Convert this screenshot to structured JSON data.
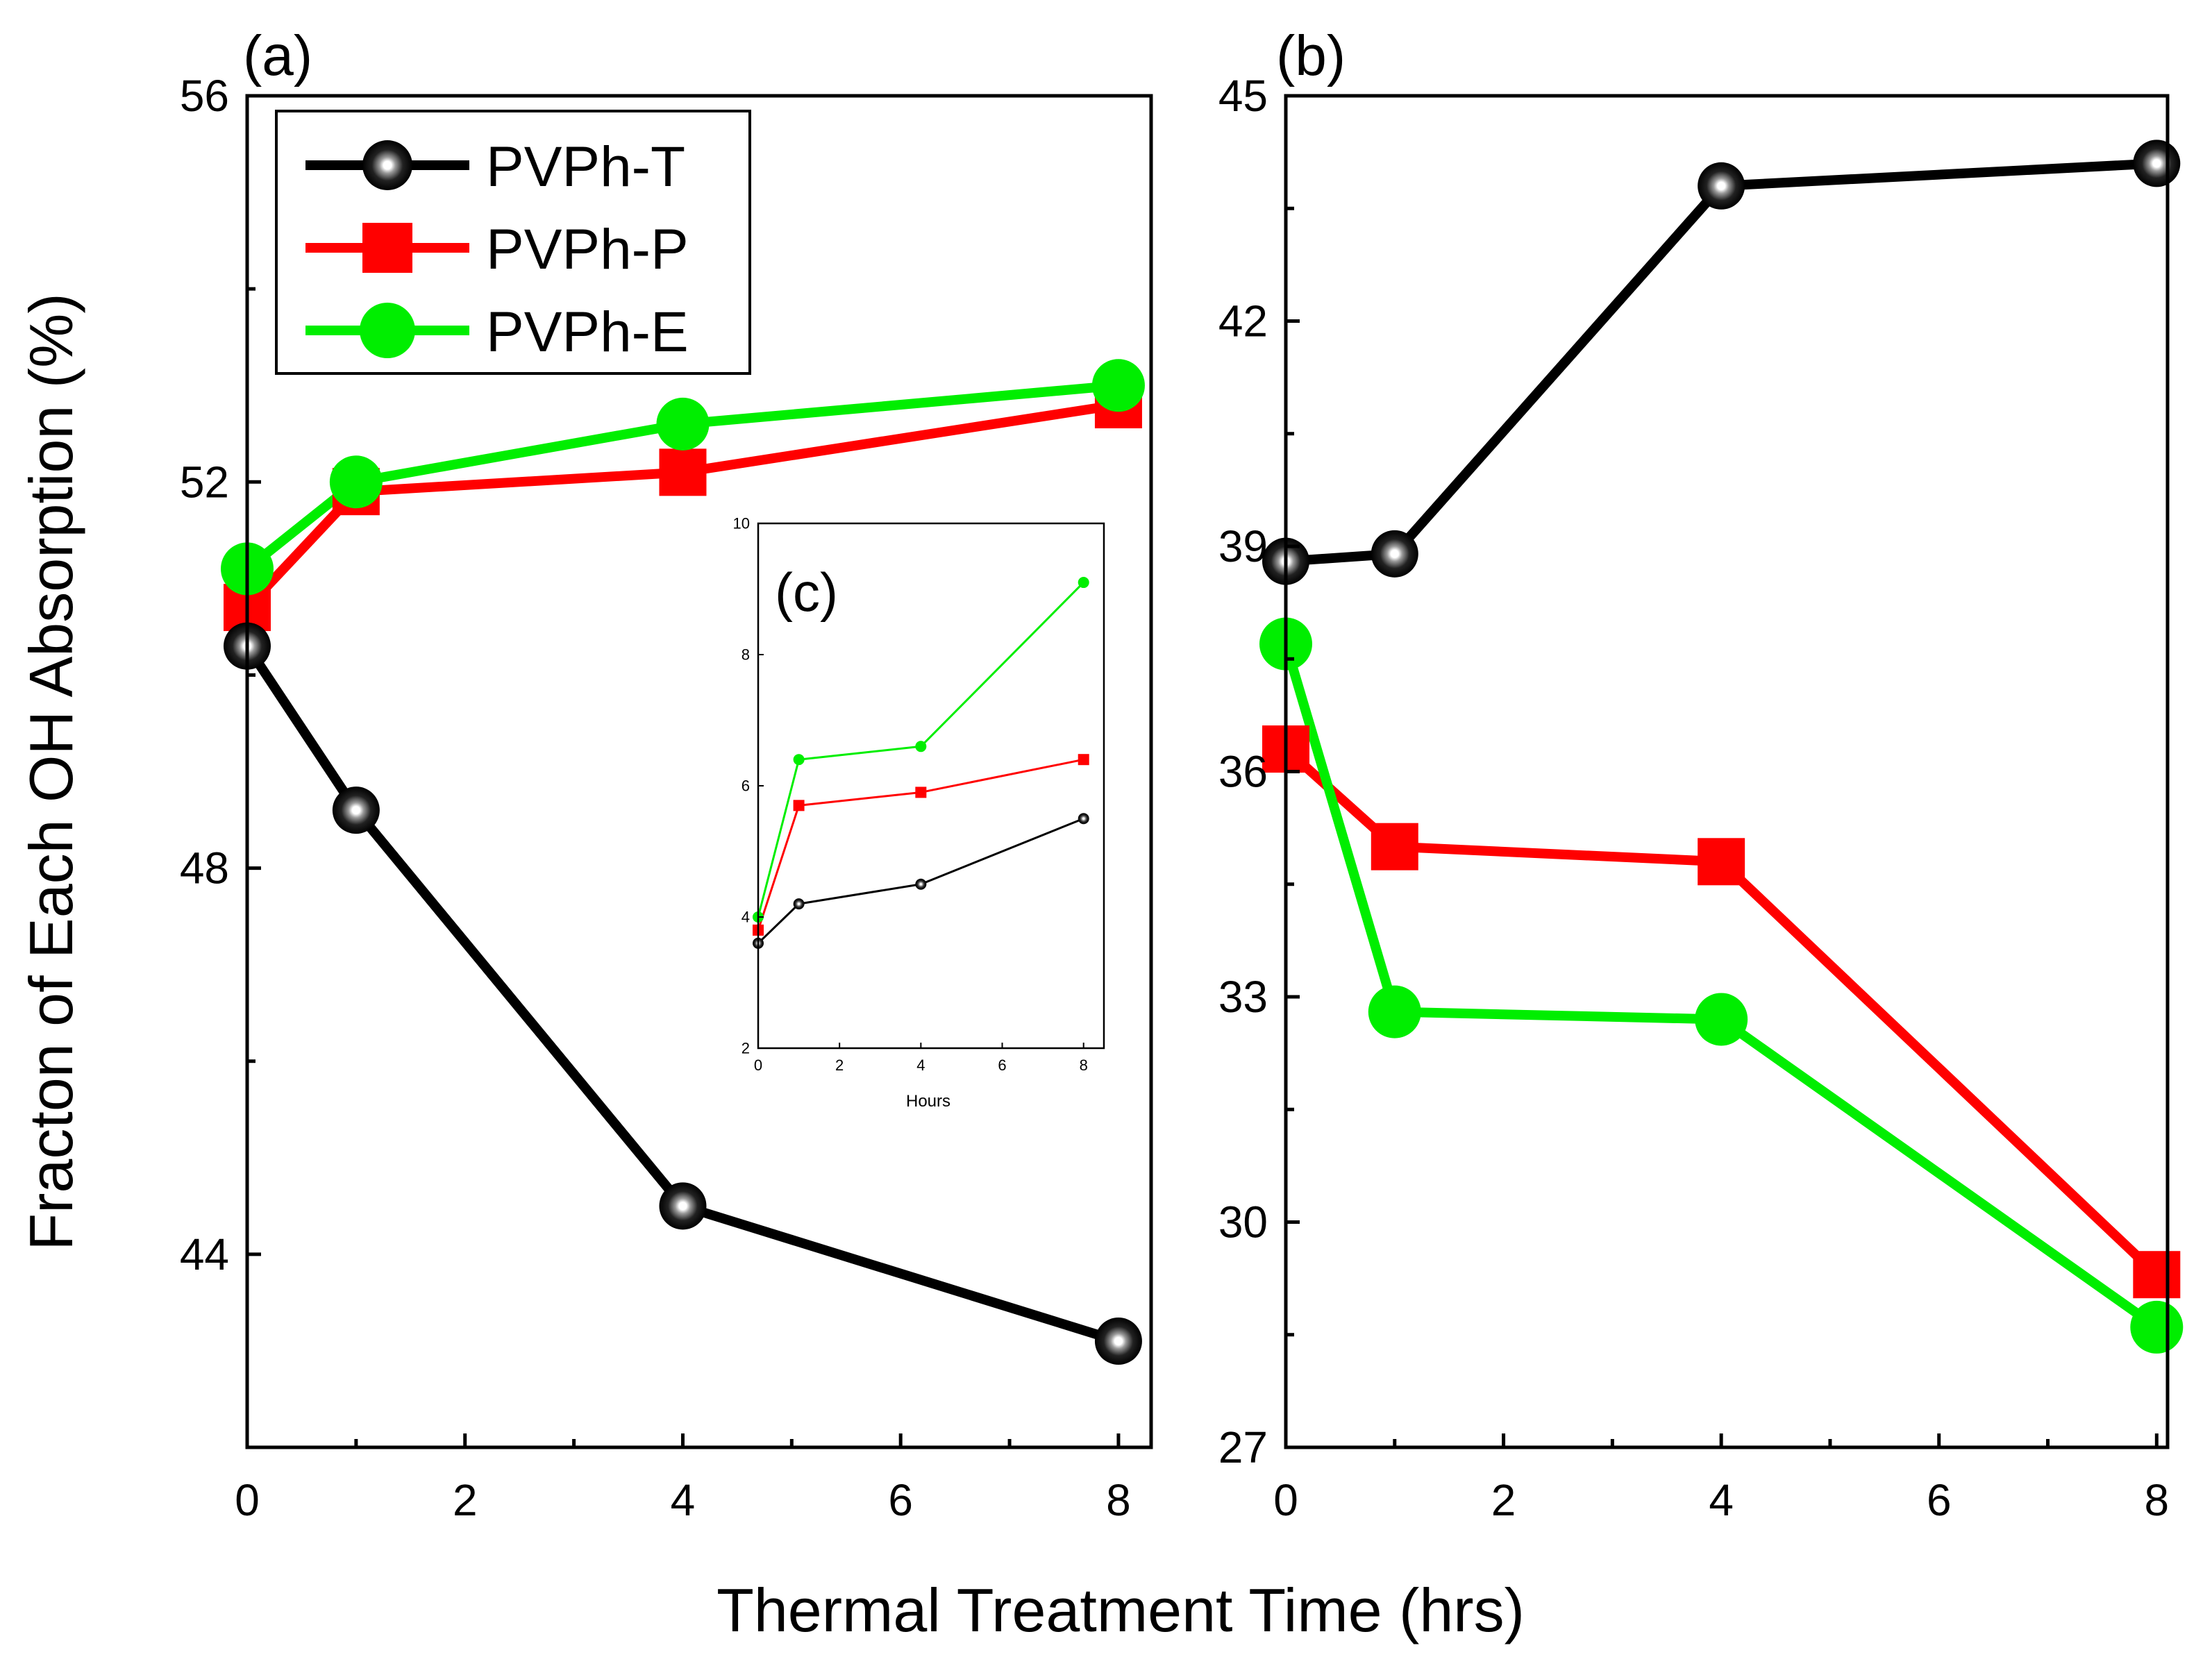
{
  "figure": {
    "xlabel": "Thermal Treatment Time (hrs)",
    "ylabel": "Fracton of Each OH Absorption (%)"
  },
  "chart_data": [
    {
      "panel": "(a)",
      "type": "line",
      "xlim": [
        0,
        8.3
      ],
      "ylim": [
        42,
        56
      ],
      "xticks": [
        "0",
        "2",
        "4",
        "6",
        "8"
      ],
      "yticks": [
        "44",
        "48",
        "52",
        "56"
      ],
      "legend": {
        "placement": "top-left",
        "entries": [
          "PVPh-T",
          "PVPh-P",
          "PVPh-E"
        ]
      },
      "series": [
        {
          "name": "PVPh-T",
          "color": "#000000",
          "marker": "sphere",
          "x": [
            0,
            1,
            4,
            8
          ],
          "y": [
            50.3,
            48.6,
            44.5,
            43.1
          ]
        },
        {
          "name": "PVPh-P",
          "color": "#ff0000",
          "marker": "square",
          "x": [
            0,
            1,
            4,
            8
          ],
          "y": [
            50.7,
            51.9,
            52.1,
            52.8
          ]
        },
        {
          "name": "PVPh-E",
          "color": "#00ee00",
          "marker": "circle",
          "x": [
            0,
            1,
            4,
            8
          ],
          "y": [
            51.1,
            52.0,
            52.6,
            53.0
          ]
        }
      ]
    },
    {
      "panel": "(b)",
      "type": "line",
      "xlim": [
        0,
        8.1
      ],
      "ylim": [
        27,
        45
      ],
      "xticks": [
        "0",
        "2",
        "4",
        "6",
        "8"
      ],
      "yticks": [
        "27",
        "30",
        "33",
        "36",
        "39",
        "42",
        "45"
      ],
      "series": [
        {
          "name": "PVPh-T",
          "color": "#000000",
          "marker": "sphere",
          "x": [
            0,
            1,
            4,
            8
          ],
          "y": [
            38.8,
            38.9,
            43.8,
            44.1
          ]
        },
        {
          "name": "PVPh-P",
          "color": "#ff0000",
          "marker": "square",
          "x": [
            0,
            1,
            4,
            8
          ],
          "y": [
            36.3,
            35.0,
            34.8,
            29.3
          ]
        },
        {
          "name": "PVPh-E",
          "color": "#00ee00",
          "marker": "circle",
          "x": [
            0,
            1,
            4,
            8
          ],
          "y": [
            37.7,
            32.8,
            32.7,
            28.6
          ]
        }
      ]
    },
    {
      "panel": "(c)",
      "type": "line",
      "inset": true,
      "xlabel": "Hours",
      "xlim": [
        0,
        8.5
      ],
      "ylim": [
        2,
        10
      ],
      "xticks": [
        "0",
        "2",
        "4",
        "6",
        "8"
      ],
      "yticks": [
        "2",
        "4",
        "6",
        "8",
        "10"
      ],
      "series": [
        {
          "name": "PVPh-T",
          "color": "#000000",
          "marker": "sphere",
          "x": [
            0,
            1,
            4,
            8
          ],
          "y": [
            3.6,
            4.2,
            4.5,
            5.5
          ]
        },
        {
          "name": "PVPh-P",
          "color": "#ff0000",
          "marker": "square",
          "x": [
            0,
            1,
            4,
            8
          ],
          "y": [
            3.8,
            5.7,
            5.9,
            6.4
          ]
        },
        {
          "name": "PVPh-E",
          "color": "#00ee00",
          "marker": "circle",
          "x": [
            0,
            1,
            4,
            8
          ],
          "y": [
            4.0,
            6.4,
            6.6,
            9.1
          ]
        }
      ]
    }
  ]
}
